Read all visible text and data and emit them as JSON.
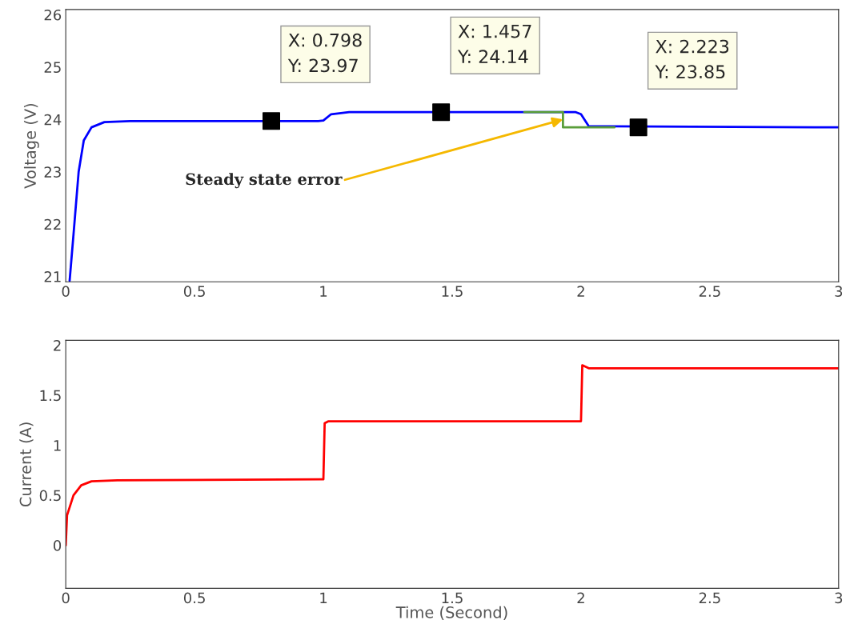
{
  "chart_data": [
    {
      "type": "line",
      "ylabel": "Voltage (V)",
      "xlim": [
        0,
        3
      ],
      "ylim": [
        20.9,
        26.1
      ],
      "xticks": [
        0,
        0.5,
        1,
        1.5,
        2,
        2.5,
        3
      ],
      "yticks": [
        21,
        22,
        23,
        24,
        25,
        26
      ],
      "grid": false,
      "series": [
        {
          "color": "#0000ff",
          "x": [
            0.015,
            0.03,
            0.05,
            0.07,
            0.1,
            0.15,
            0.25,
            0.5,
            0.98,
            1.0,
            1.03,
            1.1,
            1.98,
            2.0,
            2.03,
            3.0
          ],
          "values": [
            20.92,
            21.8,
            23.0,
            23.6,
            23.85,
            23.95,
            23.97,
            23.97,
            23.97,
            23.98,
            24.1,
            24.14,
            24.14,
            24.1,
            23.87,
            23.85
          ]
        },
        {
          "color": "#5a9e3a",
          "x": [
            1.78,
            1.93,
            1.93,
            1.93,
            2.13
          ],
          "values": [
            24.14,
            24.14,
            23.85,
            23.85,
            23.85
          ]
        },
        {
          "type": "scatter",
          "marker": "square",
          "color": "#000000",
          "x": [
            0.798,
            1.457,
            2.223
          ],
          "values": [
            23.97,
            24.14,
            23.85
          ]
        }
      ],
      "annotations": [
        {
          "text": "X: 0.798\nY: 23.97",
          "x": 0.798,
          "y": 23.97
        },
        {
          "text": "X: 1.457\nY: 24.14",
          "x": 1.457,
          "y": 24.14
        },
        {
          "text": "X: 2.223\nY: 23.85",
          "x": 2.223,
          "y": 23.85
        },
        {
          "text": "Steady state error",
          "x": 1.93,
          "y": 24.0
        }
      ]
    },
    {
      "type": "line",
      "xlabel": "Time (Second)",
      "ylabel": "Current (A)",
      "xlim": [
        0,
        3
      ],
      "ylim": [
        -0.43,
        2.05
      ],
      "xticks": [
        0,
        0.5,
        1,
        1.5,
        2,
        2.5,
        3
      ],
      "yticks": [
        0,
        0.5,
        1,
        1.5,
        2
      ],
      "grid": false,
      "series": [
        {
          "color": "#ff0000",
          "x": [
            0,
            0.005,
            0.03,
            0.06,
            0.1,
            0.2,
            0.99,
            1.0,
            1.005,
            1.02,
            1.99,
            2.0,
            2.005,
            2.03,
            3.0
          ],
          "values": [
            0,
            0.3,
            0.5,
            0.6,
            0.64,
            0.65,
            0.66,
            0.66,
            1.22,
            1.24,
            1.24,
            1.24,
            1.8,
            1.77,
            1.77
          ]
        }
      ]
    }
  ]
}
